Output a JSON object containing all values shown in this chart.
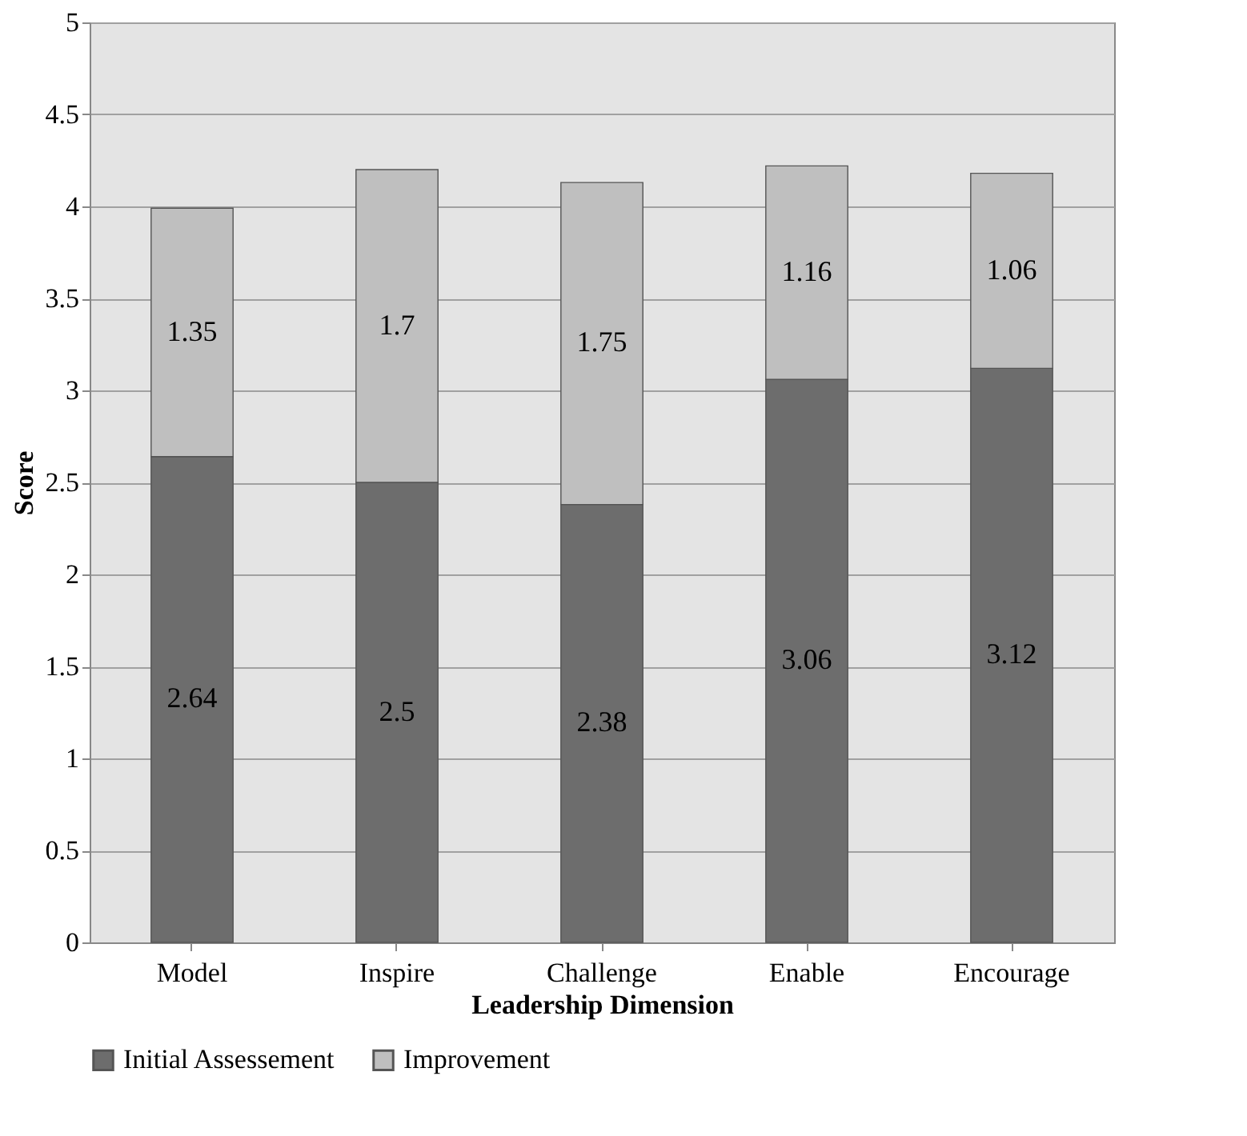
{
  "chart_data": {
    "type": "bar",
    "stacked": true,
    "xlabel": "Leadership Dimension",
    "ylabel": "Score",
    "categories": [
      "Model",
      "Inspire",
      "Challenge",
      "Enable",
      "Encourage"
    ],
    "series": [
      {
        "name": "Initial Assessement",
        "color": "#6d6d6d",
        "values": [
          2.64,
          2.5,
          2.38,
          3.06,
          3.12
        ]
      },
      {
        "name": "Improvement",
        "color": "#bfbfbf",
        "values": [
          1.35,
          1.7,
          1.75,
          1.16,
          1.06
        ]
      }
    ],
    "ylim": [
      0,
      5
    ],
    "yticks": [
      0,
      0.5,
      1,
      1.5,
      2,
      2.5,
      3,
      3.5,
      4,
      4.5,
      5
    ],
    "grid": "y",
    "legend": "bottom",
    "data_labels": true
  }
}
